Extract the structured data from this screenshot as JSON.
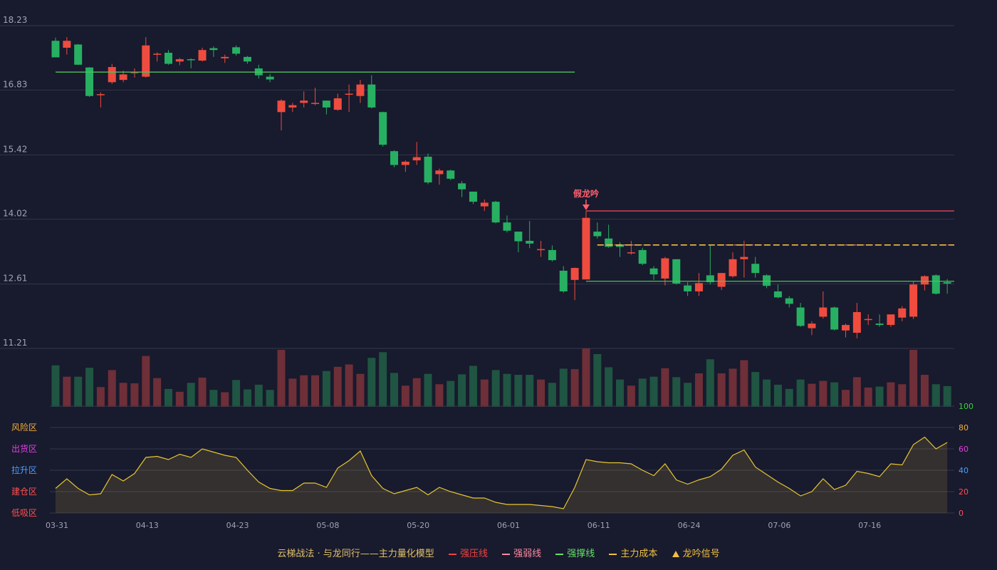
{
  "chart_data": {
    "type": "candlestick",
    "title": "",
    "price_axis": {
      "ticks": [
        "18.23",
        "16.83",
        "15.42",
        "14.02",
        "12.61",
        "11.21"
      ],
      "ylim": [
        11.21,
        18.23
      ]
    },
    "volume_axis": {
      "ticks": []
    },
    "oscillator_axis": {
      "ticks": [
        "0",
        "20",
        "40",
        "60",
        "80",
        "100"
      ],
      "ylim": [
        0,
        100
      ],
      "zones": [
        "低吸区",
        "建仓区",
        "拉升区",
        "出货区",
        "风险区"
      ]
    },
    "x_tick_labels": [
      {
        "index": 0,
        "label": "03-31"
      },
      {
        "index": 8,
        "label": "04-13"
      },
      {
        "index": 16,
        "label": "04-23"
      },
      {
        "index": 24,
        "label": "05-08"
      },
      {
        "index": 32,
        "label": "05-20"
      },
      {
        "index": 40,
        "label": "06-01"
      },
      {
        "index": 48,
        "label": "06-11"
      },
      {
        "index": 56,
        "label": "06-24"
      },
      {
        "index": 64,
        "label": "07-06"
      },
      {
        "index": 72,
        "label": "07-16"
      }
    ],
    "candles": [
      [
        17.9,
        17.54,
        17.97,
        17.54
      ],
      [
        17.75,
        17.9,
        17.98,
        17.6
      ],
      [
        17.82,
        17.38,
        17.83,
        17.38
      ],
      [
        17.32,
        16.7,
        17.33,
        16.68
      ],
      [
        16.72,
        16.74,
        16.78,
        16.45
      ],
      [
        17.0,
        17.33,
        17.4,
        16.96
      ],
      [
        17.05,
        17.17,
        17.25,
        17.0
      ],
      [
        17.2,
        17.22,
        17.3,
        17.1
      ],
      [
        17.12,
        17.8,
        17.98,
        17.1
      ],
      [
        17.6,
        17.62,
        17.65,
        17.45
      ],
      [
        17.64,
        17.4,
        17.7,
        17.38
      ],
      [
        17.45,
        17.5,
        17.53,
        17.37
      ],
      [
        17.5,
        17.48,
        17.52,
        17.3
      ],
      [
        17.47,
        17.7,
        17.75,
        17.45
      ],
      [
        17.74,
        17.7,
        17.78,
        17.55
      ],
      [
        17.52,
        17.55,
        17.6,
        17.42
      ],
      [
        17.76,
        17.62,
        17.8,
        17.58
      ],
      [
        17.55,
        17.45,
        17.57,
        17.4
      ],
      [
        17.3,
        17.15,
        17.38,
        17.08
      ],
      [
        17.12,
        17.06,
        17.18,
        17.0
      ],
      [
        16.35,
        16.6,
        16.63,
        15.95
      ],
      [
        16.45,
        16.5,
        16.55,
        16.35
      ],
      [
        16.55,
        16.6,
        16.8,
        16.45
      ],
      [
        16.55,
        16.55,
        16.88,
        16.5
      ],
      [
        16.6,
        16.45,
        16.6,
        16.3
      ],
      [
        16.4,
        16.65,
        16.75,
        16.38
      ],
      [
        16.73,
        16.75,
        16.95,
        16.35
      ],
      [
        16.7,
        16.95,
        17.05,
        16.55
      ],
      [
        16.95,
        16.45,
        17.15,
        16.43
      ],
      [
        16.35,
        15.64,
        16.36,
        15.6
      ],
      [
        15.5,
        15.2,
        15.52,
        15.15
      ],
      [
        15.2,
        15.27,
        15.3,
        15.05
      ],
      [
        15.3,
        15.37,
        15.7,
        15.2
      ],
      [
        15.38,
        14.82,
        15.45,
        14.78
      ],
      [
        15.0,
        15.08,
        15.12,
        14.77
      ],
      [
        15.08,
        14.9,
        15.1,
        14.87
      ],
      [
        14.8,
        14.67,
        14.85,
        14.5
      ],
      [
        14.62,
        14.4,
        14.62,
        14.35
      ],
      [
        14.3,
        14.38,
        14.45,
        14.2
      ],
      [
        14.4,
        13.95,
        14.42,
        13.93
      ],
      [
        13.95,
        13.77,
        14.1,
        13.73
      ],
      [
        13.75,
        13.54,
        13.75,
        13.3
      ],
      [
        13.55,
        13.49,
        13.98,
        13.39
      ],
      [
        13.35,
        13.37,
        13.55,
        13.2
      ],
      [
        13.35,
        13.13,
        13.45,
        13.1
      ],
      [
        12.9,
        12.45,
        13.0,
        12.42
      ],
      [
        12.7,
        12.96,
        12.97,
        12.26
      ],
      [
        12.71,
        14.05,
        14.2,
        12.71
      ],
      [
        13.75,
        13.65,
        13.95,
        13.6
      ],
      [
        13.6,
        13.42,
        13.9,
        13.4
      ],
      [
        13.47,
        13.42,
        13.52,
        13.2
      ],
      [
        13.3,
        13.3,
        13.55,
        13.25
      ],
      [
        13.35,
        13.05,
        13.4,
        13.02
      ],
      [
        12.95,
        12.82,
        13.0,
        12.7
      ],
      [
        12.73,
        13.17,
        13.2,
        12.58
      ],
      [
        13.15,
        12.62,
        13.15,
        12.6
      ],
      [
        12.58,
        12.45,
        12.65,
        12.35
      ],
      [
        12.45,
        12.63,
        12.85,
        12.35
      ],
      [
        12.8,
        12.65,
        13.45,
        12.6
      ],
      [
        12.55,
        12.85,
        12.85,
        12.48
      ],
      [
        12.78,
        13.15,
        13.3,
        12.75
      ],
      [
        13.15,
        13.2,
        13.55,
        12.75
      ],
      [
        13.05,
        12.85,
        13.2,
        12.75
      ],
      [
        12.8,
        12.57,
        12.82,
        12.52
      ],
      [
        12.45,
        12.32,
        12.6,
        12.3
      ],
      [
        12.3,
        12.18,
        12.35,
        12.1
      ],
      [
        12.1,
        11.7,
        12.2,
        11.68
      ],
      [
        11.65,
        11.75,
        11.8,
        11.5
      ],
      [
        11.9,
        12.1,
        12.45,
        11.86
      ],
      [
        12.1,
        11.62,
        12.12,
        11.6
      ],
      [
        11.6,
        11.72,
        11.75,
        11.45
      ],
      [
        11.55,
        12.0,
        12.2,
        11.43
      ],
      [
        11.85,
        11.85,
        11.95,
        11.72
      ],
      [
        11.75,
        11.72,
        11.95,
        11.68
      ],
      [
        11.72,
        11.95,
        11.95,
        11.68
      ],
      [
        11.88,
        12.08,
        12.13,
        11.8
      ],
      [
        11.9,
        12.6,
        12.66,
        11.85
      ],
      [
        12.6,
        12.78,
        12.8,
        12.47
      ],
      [
        12.8,
        12.4,
        12.82,
        12.38
      ],
      [
        12.65,
        12.62,
        12.72,
        12.4
      ]
    ],
    "volumes": [
      88,
      64,
      64,
      83,
      42,
      78,
      51,
      50,
      108,
      61,
      38,
      32,
      51,
      62,
      36,
      31,
      57,
      37,
      47,
      36,
      121,
      60,
      67,
      67,
      76,
      85,
      90,
      70,
      104,
      116,
      72,
      45,
      61,
      70,
      48,
      55,
      69,
      87,
      58,
      78,
      70,
      68,
      68,
      58,
      51,
      81,
      80,
      124,
      112,
      84,
      58,
      45,
      60,
      64,
      82,
      63,
      51,
      71,
      101,
      71,
      81,
      99,
      74,
      58,
      47,
      38,
      58,
      49,
      55,
      52,
      36,
      63,
      41,
      43,
      52,
      48,
      121,
      68,
      48,
      44
    ],
    "oscillator": [
      23,
      32,
      23,
      17,
      18,
      36,
      30,
      37,
      52,
      53,
      50,
      55,
      52,
      60,
      57,
      54,
      52,
      40,
      29,
      23,
      21,
      21,
      28,
      28,
      24,
      42,
      49,
      58,
      35,
      23,
      18,
      21,
      24,
      17,
      24,
      20,
      17,
      14,
      14,
      10,
      8,
      8,
      8,
      7,
      6,
      4,
      24,
      50,
      48,
      47,
      47,
      46,
      40,
      35,
      46,
      31,
      27,
      31,
      34,
      41,
      54,
      59,
      43,
      36,
      29,
      23,
      16,
      20,
      32,
      22,
      26,
      39,
      37,
      34,
      46,
      45,
      64,
      71,
      60,
      66
    ],
    "lines": [
      {
        "name": "强撑线",
        "value": 17.22,
        "from": 0,
        "to": 46
      },
      {
        "name": "强压线",
        "value": 14.2,
        "from": 47,
        "to": 79
      },
      {
        "name": "强弱线",
        "value": 13.46,
        "from": 48,
        "to": 79
      },
      {
        "name": "主力成本",
        "value": 13.46,
        "from": 48,
        "to": 79
      },
      {
        "name": "强撑线",
        "value": 12.67,
        "from": 47,
        "to": 79
      }
    ],
    "signals": [
      {
        "index": 47,
        "label": "假龙吟",
        "value": 14.2
      }
    ]
  },
  "legend": {
    "title": "云梯战法 · 与龙同行——主力量化模型",
    "items": [
      {
        "label": "强压线",
        "color": "#f04444",
        "style": "solid"
      },
      {
        "label": "强弱线",
        "color": "#ff8aa0",
        "style": "dashed"
      },
      {
        "label": "强撑线",
        "color": "#66e066",
        "style": "solid"
      },
      {
        "label": "主力成本",
        "color": "#f0c040",
        "style": "dashed"
      },
      {
        "label": "龙吟信号",
        "color": "#f0c040",
        "style": "triangle"
      }
    ]
  },
  "colors": {
    "up": "#ef4c3f",
    "down": "#27b062",
    "grid": "#33354a",
    "axis_text": "#a0a3b5",
    "osc_line": "#e6c531"
  }
}
